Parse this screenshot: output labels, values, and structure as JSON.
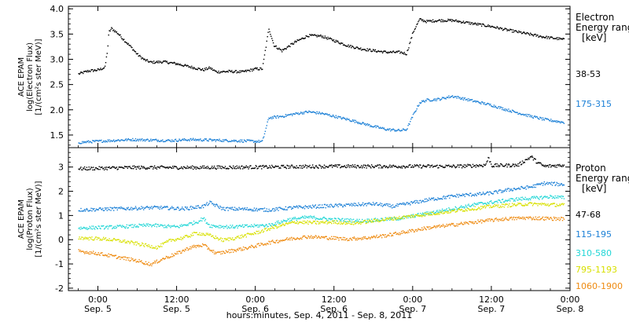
{
  "chart_data": [
    {
      "type": "scatter",
      "ylabel_lines": [
        "ACE EPAM",
        "log(Electron Flux)",
        "[1/(cm²s ster MeV)]"
      ],
      "ylim": [
        1.25,
        4.05
      ],
      "yticks": [
        "1.5",
        "2.0",
        "2.5",
        "3.0",
        "3.5",
        "4.0"
      ],
      "legend_title": [
        "Electron",
        "Energy range",
        "[keV]"
      ],
      "series": [
        {
          "name": "38-53",
          "color": "#000000",
          "points": [
            [
              -3,
              2.72
            ],
            [
              -1.5,
              2.78
            ],
            [
              0,
              2.8
            ],
            [
              1,
              2.85
            ],
            [
              1.4,
              3.2
            ],
            [
              1.6,
              3.55
            ],
            [
              2,
              3.62
            ],
            [
              3,
              3.52
            ],
            [
              4,
              3.38
            ],
            [
              5,
              3.25
            ],
            [
              6,
              3.1
            ],
            [
              7,
              3.0
            ],
            [
              8,
              2.95
            ],
            [
              10,
              2.96
            ],
            [
              12,
              2.92
            ],
            [
              14,
              2.86
            ],
            [
              16,
              2.8
            ],
            [
              17,
              2.84
            ],
            [
              18,
              2.76
            ],
            [
              20,
              2.77
            ],
            [
              22,
              2.76
            ],
            [
              24,
              2.82
            ],
            [
              25,
              2.82
            ],
            [
              26,
              3.62
            ],
            [
              26.8,
              3.28
            ],
            [
              28,
              3.18
            ],
            [
              30,
              3.35
            ],
            [
              32,
              3.48
            ],
            [
              34,
              3.47
            ],
            [
              36,
              3.38
            ],
            [
              38,
              3.28
            ],
            [
              40,
              3.22
            ],
            [
              42,
              3.18
            ],
            [
              44,
              3.15
            ],
            [
              46,
              3.15
            ],
            [
              47,
              3.12
            ],
            [
              48,
              3.55
            ],
            [
              49,
              3.8
            ],
            [
              50,
              3.76
            ],
            [
              52,
              3.78
            ],
            [
              54,
              3.78
            ],
            [
              56,
              3.74
            ],
            [
              58,
              3.7
            ],
            [
              60,
              3.66
            ],
            [
              62,
              3.6
            ],
            [
              64,
              3.55
            ],
            [
              66,
              3.5
            ],
            [
              68,
              3.45
            ],
            [
              70,
              3.42
            ],
            [
              71,
              3.4
            ]
          ]
        },
        {
          "name": "175-315",
          "color": "#1a7fd6",
          "points": [
            [
              -3,
              1.36
            ],
            [
              -1,
              1.38
            ],
            [
              2,
              1.4
            ],
            [
              5,
              1.42
            ],
            [
              8,
              1.41
            ],
            [
              11,
              1.4
            ],
            [
              14,
              1.42
            ],
            [
              17,
              1.41
            ],
            [
              20,
              1.4
            ],
            [
              23,
              1.39
            ],
            [
              25,
              1.38
            ],
            [
              26,
              1.85
            ],
            [
              28,
              1.88
            ],
            [
              30,
              1.93
            ],
            [
              32,
              1.97
            ],
            [
              34,
              1.94
            ],
            [
              36,
              1.88
            ],
            [
              38,
              1.82
            ],
            [
              40,
              1.75
            ],
            [
              42,
              1.68
            ],
            [
              44,
              1.62
            ],
            [
              46,
              1.6
            ],
            [
              47,
              1.62
            ],
            [
              48,
              1.9
            ],
            [
              49,
              2.15
            ],
            [
              50,
              2.2
            ],
            [
              52,
              2.22
            ],
            [
              54,
              2.28
            ],
            [
              56,
              2.22
            ],
            [
              58,
              2.16
            ],
            [
              60,
              2.1
            ],
            [
              62,
              2.02
            ],
            [
              64,
              1.95
            ],
            [
              66,
              1.88
            ],
            [
              68,
              1.82
            ],
            [
              70,
              1.78
            ],
            [
              71,
              1.76
            ]
          ]
        }
      ]
    },
    {
      "type": "scatter",
      "ylabel_lines": [
        "ACE EPAM",
        "log(Proton Flux)",
        "[1/(cm²s ster MeV)]"
      ],
      "ylim": [
        -2.1,
        3.8
      ],
      "yticks": [
        "-2",
        "-1",
        "0",
        "1",
        "2",
        "3"
      ],
      "legend_title": [
        "Proton",
        "Energy range",
        "[keV]"
      ],
      "series": [
        {
          "name": "47-68",
          "color": "#000000",
          "points": [
            [
              -3,
              2.95
            ],
            [
              5,
              3.0
            ],
            [
              15,
              3.0
            ],
            [
              25,
              3.02
            ],
            [
              35,
              3.05
            ],
            [
              45,
              3.05
            ],
            [
              55,
              3.05
            ],
            [
              59,
              3.1
            ],
            [
              59.5,
              3.4
            ],
            [
              60,
              3.08
            ],
            [
              64,
              3.1
            ],
            [
              66,
              3.45
            ],
            [
              67,
              3.2
            ],
            [
              68,
              3.05
            ],
            [
              71,
              3.1
            ]
          ]
        },
        {
          "name": "115-195",
          "color": "#1a7fd6",
          "points": [
            [
              -3,
              1.25
            ],
            [
              3,
              1.3
            ],
            [
              9,
              1.35
            ],
            [
              13,
              1.3
            ],
            [
              16,
              1.4
            ],
            [
              17,
              1.55
            ],
            [
              19,
              1.3
            ],
            [
              23,
              1.28
            ],
            [
              26,
              1.25
            ],
            [
              30,
              1.35
            ],
            [
              34,
              1.4
            ],
            [
              38,
              1.45
            ],
            [
              42,
              1.5
            ],
            [
              45,
              1.4
            ],
            [
              48,
              1.55
            ],
            [
              51,
              1.7
            ],
            [
              55,
              1.85
            ],
            [
              58,
              1.9
            ],
            [
              60,
              1.95
            ],
            [
              63,
              2.1
            ],
            [
              66,
              2.2
            ],
            [
              68,
              2.35
            ],
            [
              71,
              2.3
            ]
          ]
        },
        {
          "name": "310-580",
          "color": "#22d6d6",
          "points": [
            [
              -3,
              0.5
            ],
            [
              3,
              0.55
            ],
            [
              8,
              0.62
            ],
            [
              12,
              0.55
            ],
            [
              15,
              0.75
            ],
            [
              16,
              0.9
            ],
            [
              17,
              0.6
            ],
            [
              20,
              0.55
            ],
            [
              23,
              0.58
            ],
            [
              26,
              0.62
            ],
            [
              29,
              0.85
            ],
            [
              32,
              0.95
            ],
            [
              36,
              0.85
            ],
            [
              40,
              0.8
            ],
            [
              43,
              0.85
            ],
            [
              46,
              0.9
            ],
            [
              49,
              1.05
            ],
            [
              52,
              1.2
            ],
            [
              55,
              1.35
            ],
            [
              58,
              1.5
            ],
            [
              61,
              1.6
            ],
            [
              64,
              1.7
            ],
            [
              67,
              1.75
            ],
            [
              69,
              1.8
            ],
            [
              71,
              1.75
            ]
          ]
        },
        {
          "name": "795-1193",
          "color": "#d8e000",
          "points": [
            [
              -3,
              0.1
            ],
            [
              1,
              0.05
            ],
            [
              4,
              -0.05
            ],
            [
              7,
              -0.2
            ],
            [
              9,
              -0.3
            ],
            [
              11,
              0.0
            ],
            [
              13,
              0.1
            ],
            [
              15,
              0.3
            ],
            [
              17,
              0.2
            ],
            [
              19,
              0.0
            ],
            [
              21,
              0.1
            ],
            [
              24,
              0.3
            ],
            [
              27,
              0.55
            ],
            [
              30,
              0.75
            ],
            [
              33,
              0.72
            ],
            [
              36,
              0.75
            ],
            [
              39,
              0.7
            ],
            [
              42,
              0.8
            ],
            [
              45,
              0.9
            ],
            [
              48,
              1.0
            ],
            [
              51,
              1.1
            ],
            [
              54,
              1.2
            ],
            [
              57,
              1.3
            ],
            [
              60,
              1.4
            ],
            [
              63,
              1.45
            ],
            [
              66,
              1.5
            ],
            [
              68,
              1.48
            ],
            [
              71,
              1.45
            ]
          ]
        },
        {
          "name": "1060-1900",
          "color": "#ee8a10",
          "points": [
            [
              -3,
              -0.45
            ],
            [
              0,
              -0.55
            ],
            [
              3,
              -0.7
            ],
            [
              6,
              -0.85
            ],
            [
              8,
              -1.0
            ],
            [
              10,
              -0.75
            ],
            [
              12,
              -0.55
            ],
            [
              14,
              -0.3
            ],
            [
              16,
              -0.2
            ],
            [
              18,
              -0.55
            ],
            [
              20,
              -0.45
            ],
            [
              23,
              -0.3
            ],
            [
              26,
              -0.1
            ],
            [
              29,
              0.05
            ],
            [
              32,
              0.15
            ],
            [
              35,
              0.1
            ],
            [
              38,
              0.05
            ],
            [
              41,
              0.1
            ],
            [
              44,
              0.2
            ],
            [
              47,
              0.35
            ],
            [
              50,
              0.5
            ],
            [
              53,
              0.6
            ],
            [
              56,
              0.7
            ],
            [
              59,
              0.8
            ],
            [
              62,
              0.88
            ],
            [
              65,
              0.92
            ],
            [
              68,
              0.9
            ],
            [
              71,
              0.88
            ]
          ]
        }
      ]
    }
  ],
  "xaxis": {
    "range_hours": [
      -4.5,
      72
    ],
    "ticks": [
      {
        "h": 0,
        "time": "0:00",
        "date": "Sep. 5"
      },
      {
        "h": 12,
        "time": "12:00",
        "date": "Sep. 5"
      },
      {
        "h": 24,
        "time": "0:00",
        "date": "Sep. 6"
      },
      {
        "h": 36,
        "time": "12:00",
        "date": "Sep. 6"
      },
      {
        "h": 48,
        "time": "0:00",
        "date": "Sep. 7"
      },
      {
        "h": 60,
        "time": "12:00",
        "date": "Sep. 7"
      },
      {
        "h": 72,
        "time": "0:00",
        "date": "Sep. 8"
      }
    ],
    "label": "hours:minutes, Sep.  4, 2011 - Sep.  8, 2011"
  }
}
